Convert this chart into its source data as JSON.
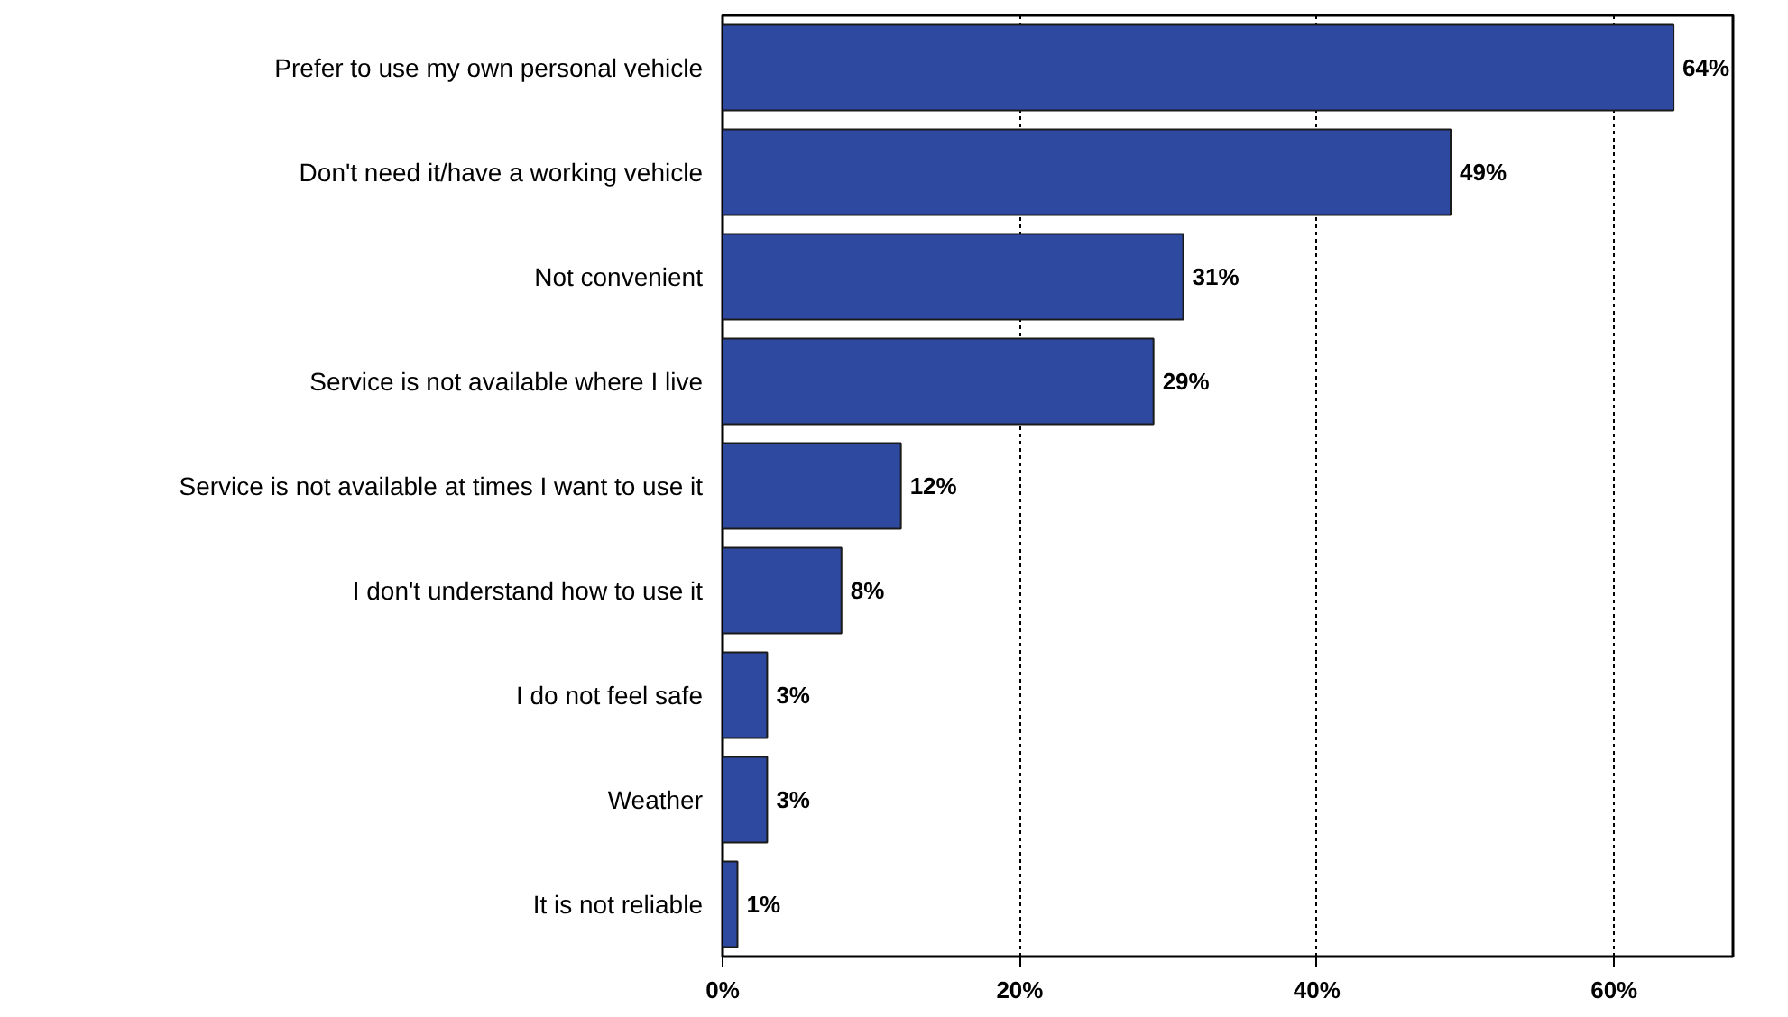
{
  "chart_data": {
    "type": "bar",
    "orientation": "horizontal",
    "categories": [
      "Prefer to use my own personal vehicle",
      "Don't need it/have a working vehicle",
      "Not convenient",
      "Service is not available where I live",
      "Service is not available at times I want to use it",
      "I don't understand how to use it",
      "I do not feel safe",
      "Weather",
      "It is not reliable"
    ],
    "values": [
      64,
      49,
      31,
      29,
      12,
      8,
      3,
      3,
      1
    ],
    "value_labels": [
      "64%",
      "49%",
      "31%",
      "29%",
      "12%",
      "8%",
      "3%",
      "3%",
      "1%"
    ],
    "color": "#2e4aa0",
    "xlim": [
      0,
      68
    ],
    "xticks": [
      {
        "value": 0,
        "label": "0%"
      },
      {
        "value": 20,
        "label": "20%"
      },
      {
        "value": 40,
        "label": "40%"
      },
      {
        "value": 60,
        "label": "60%"
      }
    ],
    "grid": "x"
  }
}
